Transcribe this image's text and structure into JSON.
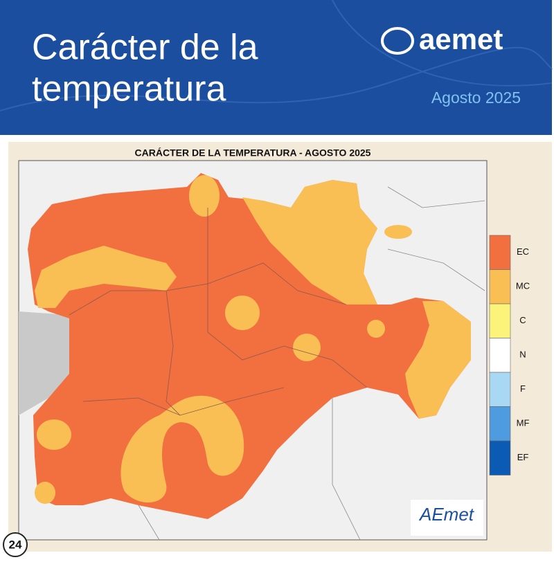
{
  "header": {
    "title_lines": [
      "Carácter de la",
      "temperatura"
    ],
    "brand": "aemet",
    "date": "Agosto 2025"
  },
  "map": {
    "title": "CARÁCTER DE LA TEMPERATURA - AGOSTO 2025",
    "legend": [
      {
        "label": "EC",
        "color": "#f26f3f"
      },
      {
        "label": "MC",
        "color": "#f9bf55"
      },
      {
        "label": "C",
        "color": "#fbf37a"
      },
      {
        "label": "N",
        "color": "#ffffff"
      },
      {
        "label": "F",
        "color": "#a9d8f5"
      },
      {
        "label": "MF",
        "color": "#4f9be0"
      },
      {
        "label": "EF",
        "color": "#0b5bb5"
      }
    ],
    "logo": "AEmet"
  },
  "badge": "24"
}
